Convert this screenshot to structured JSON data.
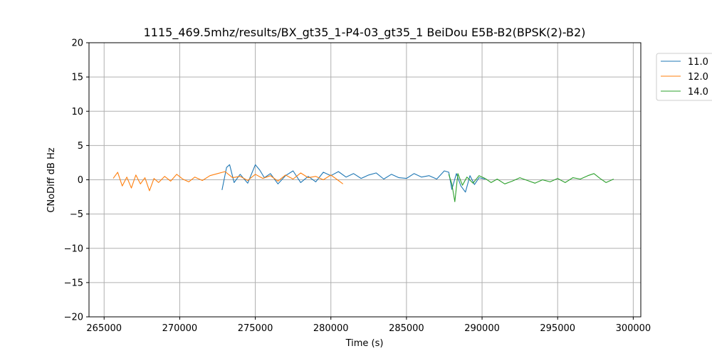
{
  "chart_data": {
    "type": "line",
    "title": "1115_469.5mhz/results/BX_gt35_1-P4-03_gt35_1 BeiDou E5B-B2(BPSK(2)-B2)",
    "xlabel": "Time (s)",
    "ylabel": "CNoDiff dB Hz",
    "xlim": [
      264000,
      300500
    ],
    "ylim": [
      -20,
      20
    ],
    "xticks": [
      265000,
      270000,
      275000,
      280000,
      285000,
      290000,
      295000,
      300000
    ],
    "xtick_labels": [
      "265000",
      "270000",
      "275000",
      "280000",
      "285000",
      "290000",
      "295000",
      "300000"
    ],
    "yticks": [
      -20,
      -15,
      -10,
      -5,
      0,
      5,
      10,
      15,
      20
    ],
    "ytick_labels": [
      "−20",
      "−15",
      "−10",
      "−5",
      "0",
      "5",
      "10",
      "15",
      "20"
    ],
    "grid": true,
    "legend_position": "outside-top-right",
    "series": [
      {
        "name": "11.0",
        "color": "#1f77b4",
        "x": [
          272800,
          273100,
          273300,
          273600,
          274000,
          274500,
          275000,
          275300,
          275600,
          276000,
          276500,
          277000,
          277500,
          278000,
          278500,
          279000,
          279500,
          280000,
          280500,
          281000,
          281500,
          282000,
          282500,
          283000,
          283500,
          284000,
          284500,
          285000,
          285500,
          286000,
          286500,
          287000,
          287500,
          287800,
          288000,
          288300,
          288600,
          288900,
          289200,
          289500,
          289800,
          290200
        ],
        "y": [
          -1.5,
          1.8,
          2.2,
          -0.4,
          0.8,
          -0.5,
          2.2,
          1.4,
          0.3,
          0.9,
          -0.6,
          0.6,
          1.3,
          -0.4,
          0.5,
          -0.3,
          1.1,
          0.6,
          1.2,
          0.4,
          0.9,
          0.2,
          0.7,
          1.0,
          0.1,
          0.8,
          0.3,
          0.2,
          0.9,
          0.4,
          0.6,
          0.1,
          1.3,
          1.1,
          -1.4,
          0.9,
          -0.9,
          -1.8,
          0.6,
          -0.7,
          0.3,
          0.1
        ]
      },
      {
        "name": "12.0",
        "color": "#ff7f0e",
        "x": [
          265600,
          265900,
          266200,
          266500,
          266800,
          267100,
          267400,
          267700,
          268000,
          268300,
          268600,
          269000,
          269400,
          269800,
          270200,
          270600,
          271000,
          271500,
          272000,
          272500,
          273000,
          273500,
          274000,
          274500,
          275000,
          275500,
          276000,
          276500,
          277000,
          277500,
          278000,
          278500,
          279000,
          279500,
          280000,
          280500,
          280800
        ],
        "y": [
          0.2,
          1.1,
          -0.9,
          0.4,
          -1.2,
          0.7,
          -0.6,
          0.3,
          -1.6,
          0.2,
          -0.4,
          0.5,
          -0.2,
          0.8,
          0.1,
          -0.3,
          0.4,
          -0.1,
          0.6,
          0.9,
          1.2,
          0.3,
          0.5,
          -0.1,
          0.8,
          0.2,
          0.6,
          -0.2,
          0.7,
          0.1,
          1.0,
          0.3,
          0.5,
          0.0,
          0.7,
          -0.1,
          -0.6
        ]
      },
      {
        "name": "14.0",
        "color": "#2ca02c",
        "x": [
          287800,
          288000,
          288200,
          288400,
          288700,
          289000,
          289400,
          289800,
          290200,
          290600,
          291000,
          291500,
          292000,
          292500,
          293000,
          293500,
          294000,
          294500,
          295000,
          295500,
          296000,
          296500,
          297000,
          297400,
          297800,
          298200,
          298700
        ],
        "y": [
          0.8,
          -0.6,
          -3.2,
          0.9,
          -0.8,
          0.4,
          -0.5,
          0.6,
          0.2,
          -0.4,
          0.1,
          -0.6,
          -0.2,
          0.3,
          -0.1,
          -0.5,
          0.0,
          -0.3,
          0.2,
          -0.4,
          0.3,
          0.1,
          0.6,
          0.9,
          0.2,
          -0.4,
          0.1
        ]
      }
    ]
  }
}
